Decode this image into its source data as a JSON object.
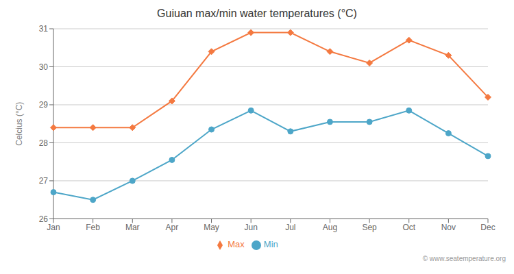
{
  "chart_data": {
    "type": "line",
    "title": "Guiuan max/min water temperatures (°C)",
    "y_label": "Celcius (°C)",
    "categories": [
      "Jan",
      "Feb",
      "Mar",
      "Apr",
      "May",
      "Jun",
      "Jul",
      "Aug",
      "Sep",
      "Oct",
      "Nov",
      "Dec"
    ],
    "series": [
      {
        "name": "Max",
        "color": "#f47940",
        "marker": "diamond",
        "values": [
          28.4,
          28.4,
          28.4,
          29.1,
          30.4,
          30.9,
          30.9,
          30.4,
          30.1,
          30.7,
          30.3,
          29.2
        ]
      },
      {
        "name": "Min",
        "color": "#4da6c8",
        "marker": "circle",
        "values": [
          26.7,
          26.5,
          27.0,
          27.55,
          28.35,
          28.85,
          28.3,
          28.55,
          28.55,
          28.85,
          28.25,
          27.65
        ]
      }
    ],
    "ylim": [
      26,
      31
    ],
    "yticks": [
      26,
      27,
      28,
      29,
      30,
      31
    ],
    "grid": true,
    "legend": "bottom",
    "annotations": [
      "© www.seatemperature.org"
    ]
  }
}
